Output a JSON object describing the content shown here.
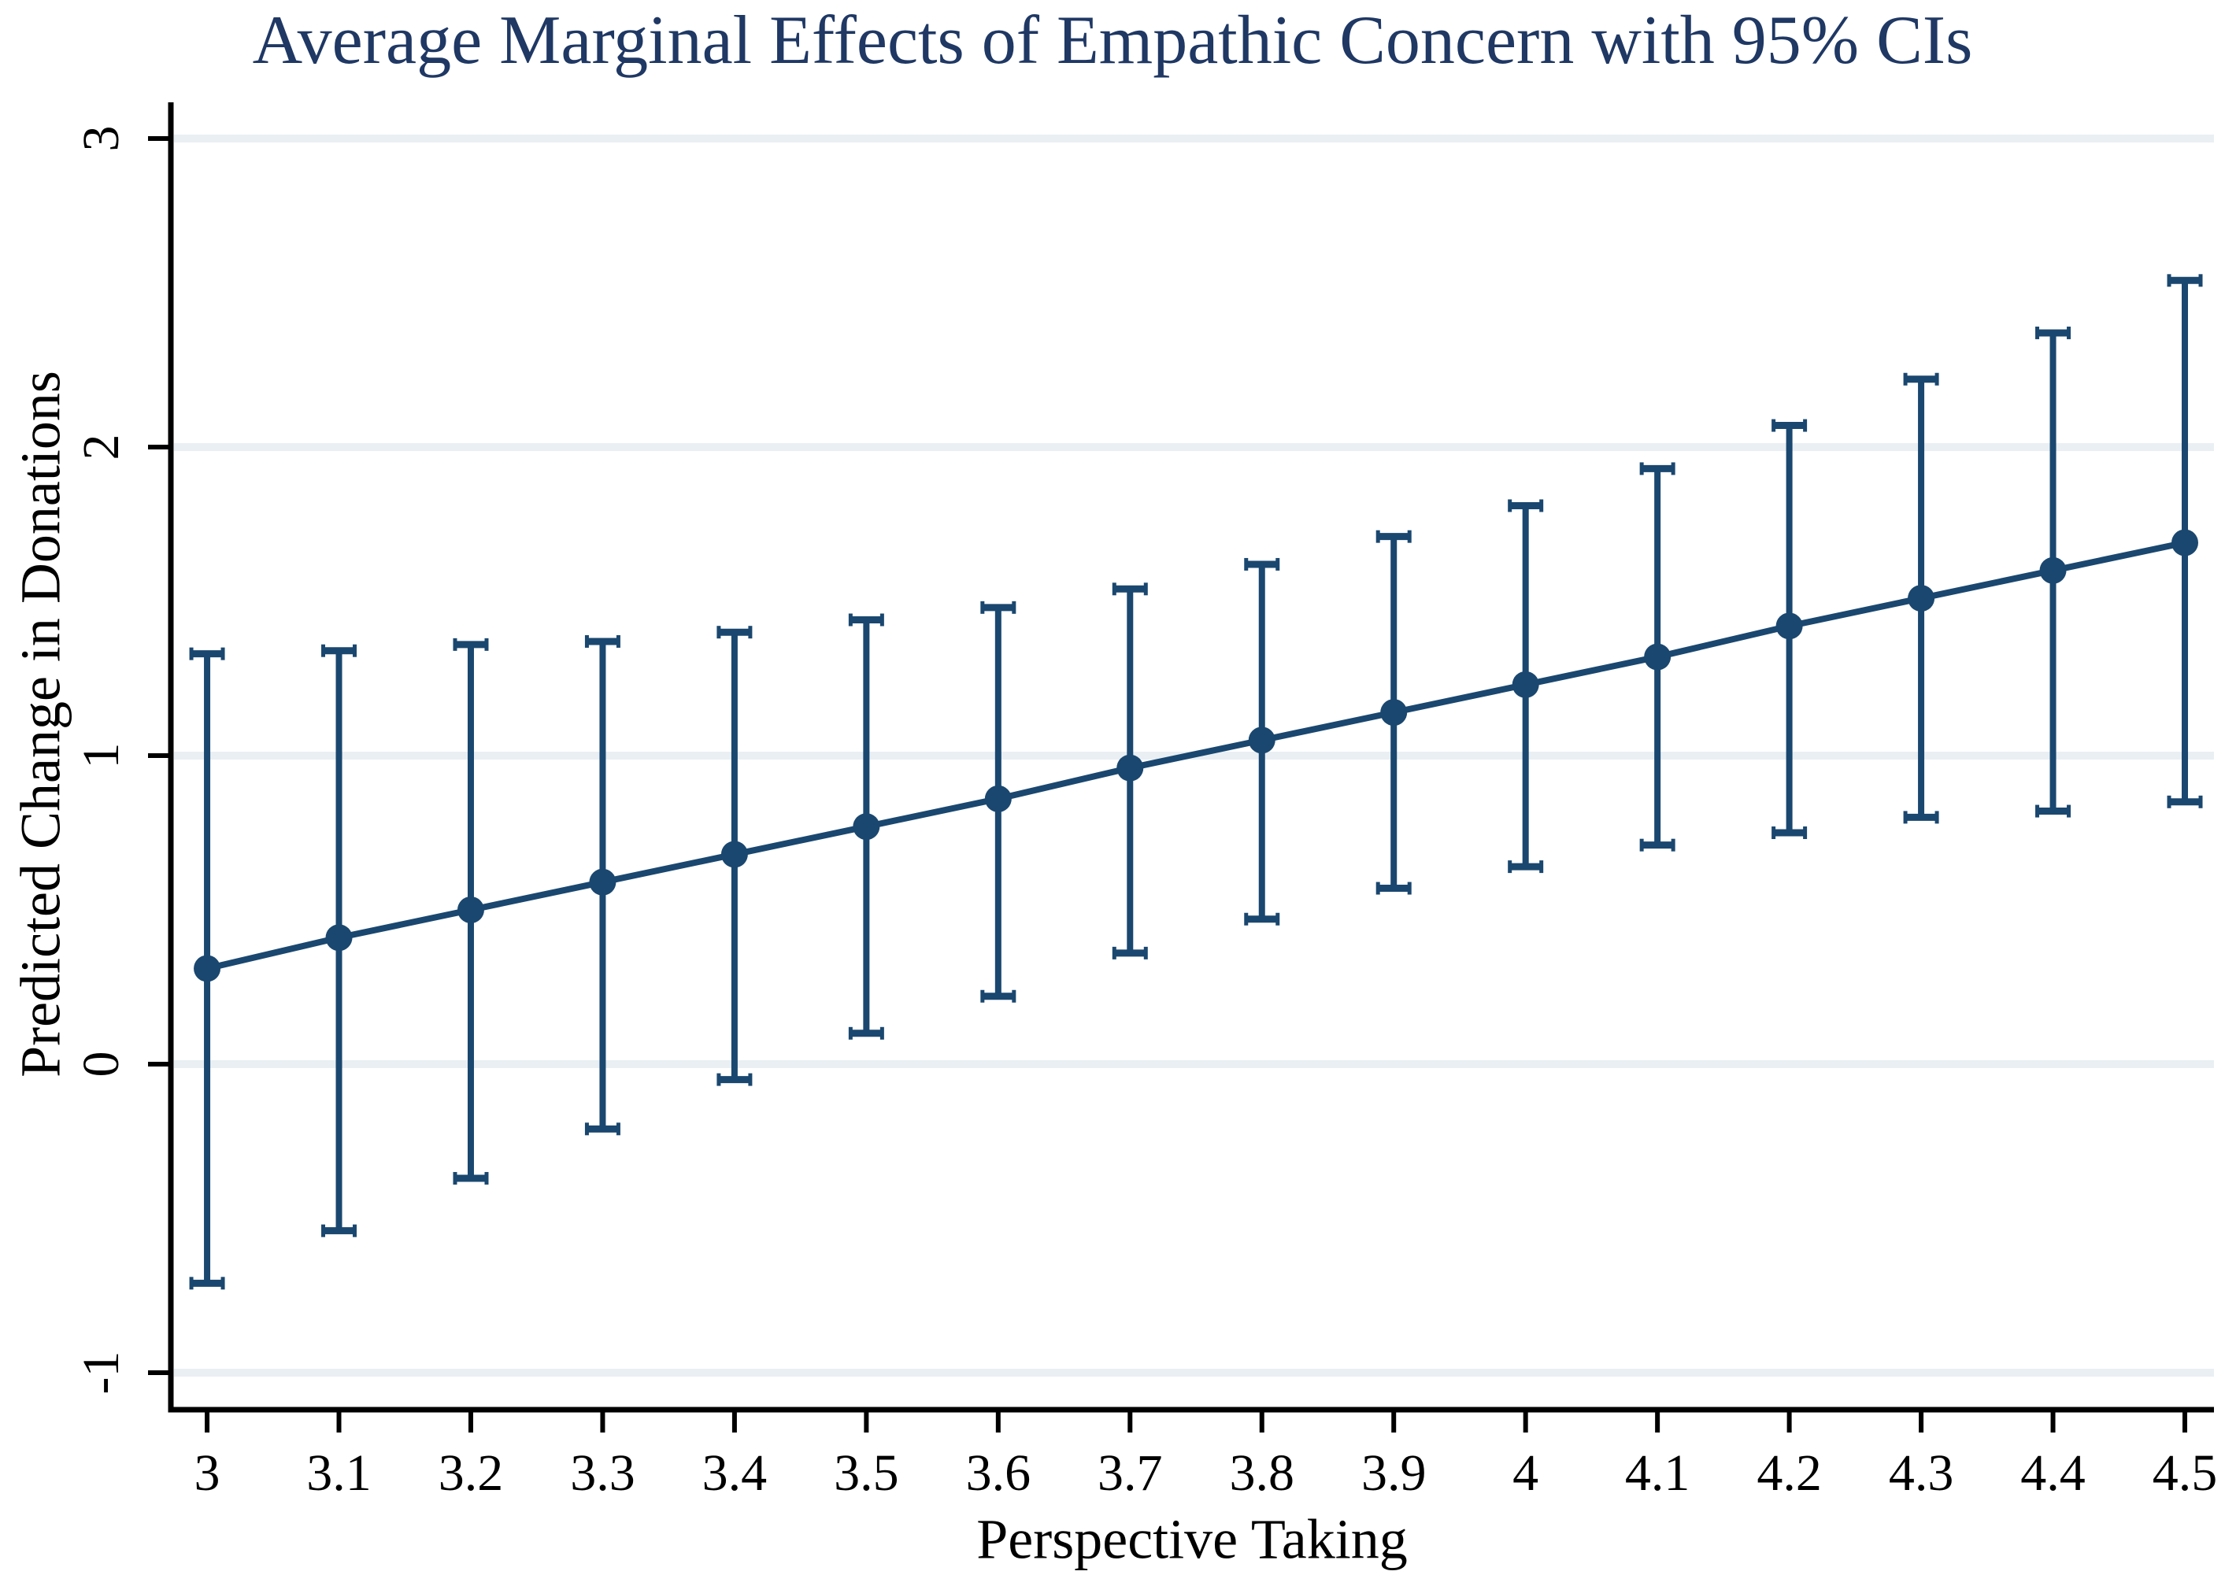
{
  "colors": {
    "series": "#1a476f",
    "title_text": "#1f3864",
    "axis_text": "#000000",
    "axis_line": "#000000",
    "gridline": "#e9eff3",
    "background": "#ffffff"
  },
  "chart_data": {
    "type": "line",
    "title": "Average Marginal Effects of Empathic Concern with 95% CIs",
    "xlabel": "Perspective Taking",
    "ylabel": "Predicted Change in Donations",
    "x": [
      3,
      3.1,
      3.2,
      3.3,
      3.4,
      3.5,
      3.6,
      3.7,
      3.8,
      3.9,
      4,
      4.1,
      4.2,
      4.3,
      4.4,
      4.5
    ],
    "series": [
      {
        "name": "Average marginal effect of empathic concern",
        "values": [
          0.31,
          0.41,
          0.5,
          0.59,
          0.68,
          0.77,
          0.86,
          0.96,
          1.05,
          1.14,
          1.23,
          1.32,
          1.42,
          1.51,
          1.6,
          1.69
        ],
        "ci_lower": [
          -0.71,
          -0.54,
          -0.37,
          -0.21,
          -0.05,
          0.1,
          0.22,
          0.36,
          0.47,
          0.57,
          0.64,
          0.71,
          0.75,
          0.8,
          0.82,
          0.85
        ],
        "ci_upper": [
          1.33,
          1.34,
          1.36,
          1.37,
          1.4,
          1.44,
          1.48,
          1.54,
          1.62,
          1.71,
          1.81,
          1.93,
          2.07,
          2.22,
          2.37,
          2.54
        ]
      }
    ],
    "error_bars": "95% confidence intervals with caps",
    "marker": "filled-circle",
    "xtick_labels": [
      "3",
      "3.1",
      "3.2",
      "3.3",
      "3.4",
      "3.5",
      "3.6",
      "3.7",
      "3.8",
      "3.9",
      "4",
      "4.1",
      "4.2",
      "4.3",
      "4.4",
      "4.5"
    ],
    "ytick_labels": [
      "-1",
      "0",
      "1",
      "2",
      "3"
    ],
    "yticks": [
      -1,
      0,
      1,
      2,
      3
    ],
    "xlim": [
      2.9725,
      4.5221
    ],
    "ylim": [
      -1.1199,
      3.1173
    ],
    "grid": "horizontal-only",
    "legend": "none"
  }
}
